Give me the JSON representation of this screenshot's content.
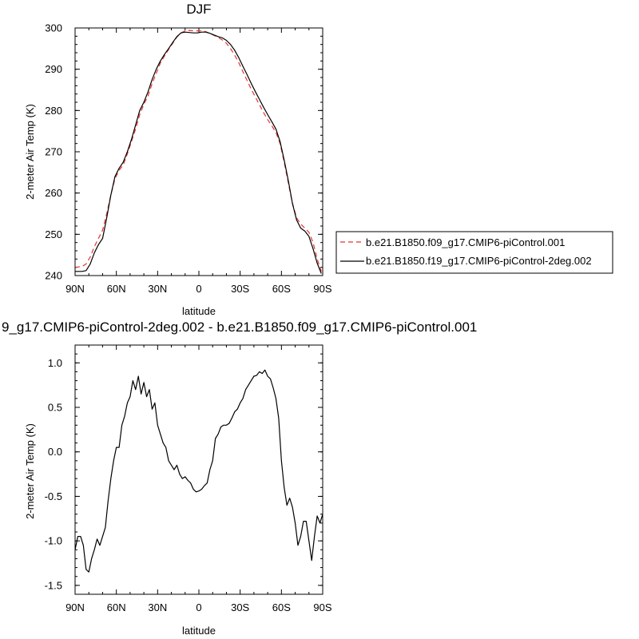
{
  "chart_data": [
    {
      "type": "line",
      "title": "DJF",
      "xlabel": "latitude",
      "ylabel": "2-meter Air Temp (K)",
      "xticks": [
        "90N",
        "60N",
        "30N",
        "0",
        "30S",
        "60S",
        "90S"
      ],
      "xtick_values": [
        90,
        60,
        30,
        0,
        -30,
        -60,
        -90
      ],
      "xlim": [
        90,
        -90
      ],
      "yticks": [
        "240",
        "250",
        "260",
        "270",
        "280",
        "290",
        "300"
      ],
      "ytick_values": [
        240,
        250,
        260,
        270,
        280,
        290,
        300
      ],
      "ylim": [
        240,
        300
      ],
      "legend_position": "right",
      "series": [
        {
          "name": "b.e21.B1850.f09_g17.CMIP6-piControl.001",
          "color": "#e8322f",
          "dash": "dashed",
          "x": [
            90,
            85,
            82,
            79,
            76,
            73,
            70,
            67,
            64,
            61,
            58,
            55,
            52,
            49,
            46,
            43,
            40,
            37,
            34,
            31,
            28,
            25,
            22,
            19,
            16,
            13,
            10,
            7,
            4,
            1,
            -2,
            -5,
            -8,
            -11,
            -14,
            -17,
            -20,
            -23,
            -26,
            -29,
            -32,
            -35,
            -38,
            -41,
            -44,
            -47,
            -50,
            -53,
            -56,
            -59,
            -62,
            -65,
            -68,
            -71,
            -74,
            -77,
            -80,
            -83,
            -86,
            -89
          ],
          "y": [
            242.0,
            242.2,
            242.8,
            244.5,
            247.0,
            249.0,
            251.0,
            255.0,
            259.5,
            263.5,
            265.5,
            266.8,
            269.5,
            272.5,
            275.5,
            279.0,
            281.5,
            283.5,
            286.5,
            289.0,
            291.5,
            293.2,
            294.8,
            296.3,
            297.8,
            298.8,
            299.3,
            299.4,
            299.3,
            299.3,
            299.3,
            299.1,
            298.7,
            298.2,
            297.7,
            297.1,
            296.3,
            295.0,
            293.4,
            291.6,
            289.4,
            287.3,
            285.2,
            283.3,
            281.4,
            279.5,
            277.8,
            276.3,
            274.7,
            272.0,
            267.5,
            262.5,
            257.5,
            254.0,
            252.5,
            251.5,
            250.5,
            248.0,
            244.0,
            241.0
          ]
        },
        {
          "name": "b.e21.B1850.f19_g17.CMIP6-piControl-2deg.002",
          "color": "#000000",
          "dash": "solid",
          "x": [
            90,
            85,
            82,
            79,
            76,
            73,
            70,
            67,
            64,
            61,
            58,
            55,
            52,
            49,
            46,
            43,
            40,
            37,
            34,
            31,
            28,
            25,
            22,
            19,
            16,
            13,
            10,
            7,
            4,
            1,
            -2,
            -5,
            -8,
            -11,
            -14,
            -17,
            -20,
            -23,
            -26,
            -29,
            -32,
            -35,
            -38,
            -41,
            -44,
            -47,
            -50,
            -53,
            -56,
            -59,
            -62,
            -65,
            -68,
            -71,
            -74,
            -77,
            -80,
            -83,
            -86,
            -89
          ],
          "y": [
            241.0,
            241.0,
            241.2,
            242.8,
            245.5,
            247.5,
            249.0,
            254.0,
            259.5,
            264.0,
            266.0,
            267.5,
            270.0,
            273.0,
            276.5,
            280.0,
            282.0,
            284.5,
            287.5,
            290.0,
            292.0,
            293.6,
            295.0,
            296.5,
            297.9,
            298.8,
            299.0,
            298.9,
            298.8,
            298.8,
            299.0,
            299.0,
            298.7,
            298.3,
            297.9,
            297.6,
            297.0,
            296.0,
            294.6,
            292.8,
            290.7,
            288.7,
            286.6,
            284.6,
            282.7,
            280.8,
            279.0,
            277.3,
            275.5,
            272.5,
            268.0,
            263.0,
            257.5,
            253.5,
            251.5,
            250.8,
            249.5,
            246.5,
            243.0,
            240.5
          ]
        }
      ]
    },
    {
      "type": "line",
      "title": "9_g17.CMIP6-piControl-2deg.002 - b.e21.B1850.f09_g17.CMIP6-piControl.001",
      "xlabel": "latitude",
      "ylabel": "2-meter Air Temp (K)",
      "xticks": [
        "90N",
        "60N",
        "30N",
        "0",
        "30S",
        "60S",
        "90S"
      ],
      "xtick_values": [
        90,
        60,
        30,
        0,
        -30,
        -60,
        -90
      ],
      "xlim": [
        90,
        -90
      ],
      "yticks": [
        "-1.5",
        "-1.0",
        "-0.5",
        "0.0",
        "0.5",
        "1.0"
      ],
      "ytick_values": [
        -1.5,
        -1.0,
        -0.5,
        0.0,
        0.5,
        1.0
      ],
      "ylim": [
        -1.6,
        1.2
      ],
      "series": [
        {
          "color": "#000000",
          "dash": "solid",
          "x": [
            90,
            88,
            86,
            84,
            82,
            80,
            78,
            76,
            74,
            72,
            70,
            68,
            66,
            64,
            62,
            60,
            58,
            56,
            54,
            52,
            50,
            48,
            46,
            44,
            42,
            40,
            38,
            36,
            34,
            32,
            30,
            28,
            26,
            24,
            22,
            20,
            18,
            16,
            14,
            12,
            10,
            8,
            6,
            4,
            2,
            0,
            -2,
            -4,
            -6,
            -8,
            -10,
            -12,
            -14,
            -16,
            -18,
            -20,
            -22,
            -24,
            -26,
            -28,
            -30,
            -32,
            -34,
            -36,
            -38,
            -40,
            -42,
            -44,
            -46,
            -48,
            -50,
            -52,
            -54,
            -56,
            -58,
            -60,
            -62,
            -64,
            -66,
            -68,
            -70,
            -72,
            -74,
            -76,
            -78,
            -80,
            -82,
            -84,
            -86,
            -88,
            -90
          ],
          "y": [
            -1.1,
            -0.95,
            -0.95,
            -1.05,
            -1.32,
            -1.35,
            -1.2,
            -1.1,
            -0.98,
            -1.05,
            -0.95,
            -0.85,
            -0.55,
            -0.3,
            -0.1,
            0.05,
            0.05,
            0.3,
            0.4,
            0.55,
            0.62,
            0.8,
            0.7,
            0.85,
            0.65,
            0.78,
            0.62,
            0.7,
            0.48,
            0.55,
            0.3,
            0.2,
            0.1,
            0.05,
            -0.1,
            -0.15,
            -0.2,
            -0.15,
            -0.25,
            -0.3,
            -0.28,
            -0.32,
            -0.35,
            -0.42,
            -0.45,
            -0.44,
            -0.42,
            -0.38,
            -0.35,
            -0.2,
            -0.1,
            0.15,
            0.2,
            0.28,
            0.3,
            0.3,
            0.32,
            0.38,
            0.45,
            0.48,
            0.55,
            0.6,
            0.7,
            0.75,
            0.8,
            0.85,
            0.86,
            0.9,
            0.88,
            0.92,
            0.85,
            0.82,
            0.72,
            0.6,
            0.38,
            -0.1,
            -0.4,
            -0.6,
            -0.52,
            -0.62,
            -0.8,
            -1.05,
            -0.95,
            -0.78,
            -0.78,
            -1.0,
            -1.22,
            -0.95,
            -0.72,
            -0.8,
            -0.7
          ]
        }
      ]
    }
  ]
}
